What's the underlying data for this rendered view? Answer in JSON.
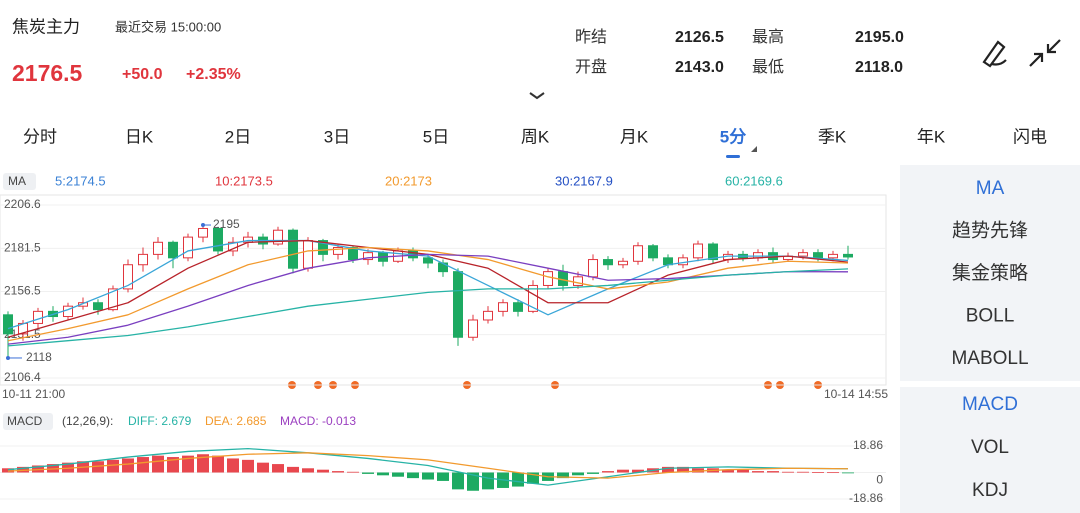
{
  "header": {
    "title": "焦炭主力",
    "status": "最近交易 15:00:00"
  },
  "quote": {
    "price": "2176.5",
    "change": "+50.0",
    "change_pct": "+2.35%",
    "fields": [
      {
        "label": "昨结",
        "value": "2126.5"
      },
      {
        "label": "最高",
        "value": "2195.0"
      },
      {
        "label": "开盘",
        "value": "2143.0"
      },
      {
        "label": "最低",
        "value": "2118.0"
      }
    ]
  },
  "tabs": [
    "分时",
    "日K",
    "2日",
    "3日",
    "5日",
    "周K",
    "月K",
    "5分",
    "季K",
    "年K",
    "闪电"
  ],
  "active_tab": 7,
  "kline": {
    "ma_label": "MA",
    "ma": [
      {
        "name": "5:2174.5",
        "color": "#3b82d6",
        "line": "#3aa6d8",
        "values": [
          2135,
          2146,
          2160,
          2180,
          2186,
          2186,
          2180,
          2177,
          2160,
          2143,
          2158,
          2172,
          2177,
          2177,
          2174.5
        ]
      },
      {
        "name": "10:2173.5",
        "color": "#e0353d",
        "line": "#b8232a",
        "values": [
          2130,
          2140,
          2150,
          2170,
          2185,
          2186,
          2182,
          2178,
          2170,
          2150,
          2150,
          2166,
          2175,
          2177,
          2173.5
        ]
      },
      {
        "name": "20:2173",
        "color": "#f29a2e",
        "line": "#f29a2e",
        "values": [
          2128,
          2135,
          2143,
          2158,
          2172,
          2180,
          2182,
          2180,
          2175,
          2165,
          2158,
          2162,
          2170,
          2174,
          2173
        ]
      },
      {
        "name": "30:2167.9",
        "color": "#2450c4",
        "line": "#7a3fc0",
        "values": [
          2126,
          2130,
          2137,
          2148,
          2160,
          2170,
          2176,
          2178,
          2177,
          2170,
          2163,
          2164,
          2166,
          2168,
          2167.9
        ]
      },
      {
        "name": "60:2169.6",
        "color": "#27b3a6",
        "line": "#27b3a6",
        "values": [
          2125,
          2128,
          2131,
          2136,
          2142,
          2148,
          2152,
          2156,
          2158,
          2158,
          2160,
          2163,
          2166,
          2168,
          2169.6
        ]
      }
    ],
    "ma_x": [
      0,
      4,
      8,
      12,
      16,
      20,
      24,
      28,
      32,
      36,
      40,
      44,
      48,
      52,
      56
    ],
    "yticks": [
      2206.6,
      2181.5,
      2156.5,
      2131.5,
      2106.4
    ],
    "high_label": "2195",
    "low_label": "2118",
    "start_time": "10-11 21:00",
    "end_time": "10-14 14:55",
    "candles": [
      [
        2143,
        2132,
        2145,
        2118
      ],
      [
        2132,
        2138,
        2140,
        2128
      ],
      [
        2138,
        2145,
        2147,
        2135
      ],
      [
        2145,
        2142,
        2148,
        2139
      ],
      [
        2142,
        2148,
        2150,
        2140
      ],
      [
        2148,
        2150,
        2153,
        2146
      ],
      [
        2150,
        2146,
        2152,
        2143
      ],
      [
        2146,
        2158,
        2160,
        2145
      ],
      [
        2158,
        2172,
        2175,
        2156
      ],
      [
        2172,
        2178,
        2182,
        2168
      ],
      [
        2178,
        2185,
        2188,
        2175
      ],
      [
        2185,
        2176,
        2186,
        2170
      ],
      [
        2176,
        2188,
        2190,
        2174
      ],
      [
        2188,
        2193,
        2195,
        2185
      ],
      [
        2193,
        2180,
        2194,
        2178
      ],
      [
        2180,
        2185,
        2188,
        2177
      ],
      [
        2185,
        2188,
        2191,
        2182
      ],
      [
        2188,
        2184,
        2190,
        2181
      ],
      [
        2184,
        2192,
        2194,
        2183
      ],
      [
        2192,
        2170,
        2193,
        2167
      ],
      [
        2170,
        2186,
        2188,
        2168
      ],
      [
        2186,
        2178,
        2187,
        2174
      ],
      [
        2178,
        2182,
        2184,
        2175
      ],
      [
        2182,
        2175,
        2183,
        2173
      ],
      [
        2175,
        2179,
        2181,
        2172
      ],
      [
        2179,
        2174,
        2180,
        2171
      ],
      [
        2174,
        2180,
        2182,
        2173
      ],
      [
        2180,
        2176,
        2182,
        2174
      ],
      [
        2176,
        2173,
        2178,
        2170
      ],
      [
        2173,
        2168,
        2175,
        2165
      ],
      [
        2168,
        2130,
        2170,
        2125
      ],
      [
        2130,
        2140,
        2143,
        2128
      ],
      [
        2140,
        2145,
        2148,
        2138
      ],
      [
        2145,
        2150,
        2152,
        2142
      ],
      [
        2150,
        2145,
        2152,
        2142
      ],
      [
        2145,
        2160,
        2163,
        2144
      ],
      [
        2160,
        2168,
        2170,
        2158
      ],
      [
        2168,
        2160,
        2172,
        2157
      ],
      [
        2160,
        2165,
        2168,
        2158
      ],
      [
        2165,
        2175,
        2178,
        2163
      ],
      [
        2175,
        2172,
        2177,
        2169
      ],
      [
        2172,
        2174,
        2176,
        2170
      ],
      [
        2174,
        2183,
        2185,
        2172
      ],
      [
        2183,
        2176,
        2184,
        2174
      ],
      [
        2176,
        2172,
        2178,
        2170
      ],
      [
        2172,
        2176,
        2178,
        2170
      ],
      [
        2176,
        2184,
        2186,
        2174
      ],
      [
        2184,
        2175,
        2185,
        2173
      ],
      [
        2175,
        2178,
        2180,
        2173
      ],
      [
        2178,
        2176,
        2180,
        2174
      ],
      [
        2176,
        2179,
        2181,
        2174
      ],
      [
        2179,
        2175,
        2182,
        2173
      ],
      [
        2175,
        2177,
        2179,
        2174
      ],
      [
        2177,
        2179,
        2181,
        2175
      ],
      [
        2179,
        2176,
        2181,
        2174
      ],
      [
        2176,
        2178,
        2180,
        2174
      ],
      [
        2178,
        2176.5,
        2183,
        2175
      ]
    ]
  },
  "macd": {
    "label": "MACD",
    "params": "(12,26,9):",
    "diff_label": "DIFF: 2.679",
    "dea_label": "DEA: 2.685",
    "macd_label": "MACD: -0.013",
    "yticks": [
      18.86,
      0,
      -18.86
    ],
    "hist": [
      3,
      4,
      5,
      6,
      7,
      8,
      8,
      9,
      10,
      11,
      12,
      11,
      12,
      13,
      12,
      10,
      9,
      7,
      6,
      4,
      3,
      2,
      1,
      0.5,
      -1,
      -2,
      -3,
      -4,
      -5,
      -6,
      -12,
      -13,
      -12,
      -11,
      -10,
      -8,
      -6,
      -4,
      -2,
      -1,
      1,
      2,
      2,
      3,
      4,
      4,
      3,
      3,
      2,
      2,
      1,
      1,
      0.5,
      0.5,
      0.3,
      0.2,
      -0.013
    ],
    "diff": [
      2,
      6,
      11,
      15,
      17,
      14,
      10,
      5,
      -4,
      -9,
      -3,
      3,
      4,
      3,
      2.679
    ],
    "dea": [
      1,
      3,
      6,
      10,
      13,
      14,
      12,
      9,
      3,
      -3,
      -4,
      0,
      2,
      3,
      2.685
    ]
  },
  "side_main": [
    "MA",
    "趋势先锋",
    "集金策略",
    "BOLL",
    "MABOLL"
  ],
  "side_sub": [
    "MACD",
    "VOL",
    "KDJ"
  ]
}
